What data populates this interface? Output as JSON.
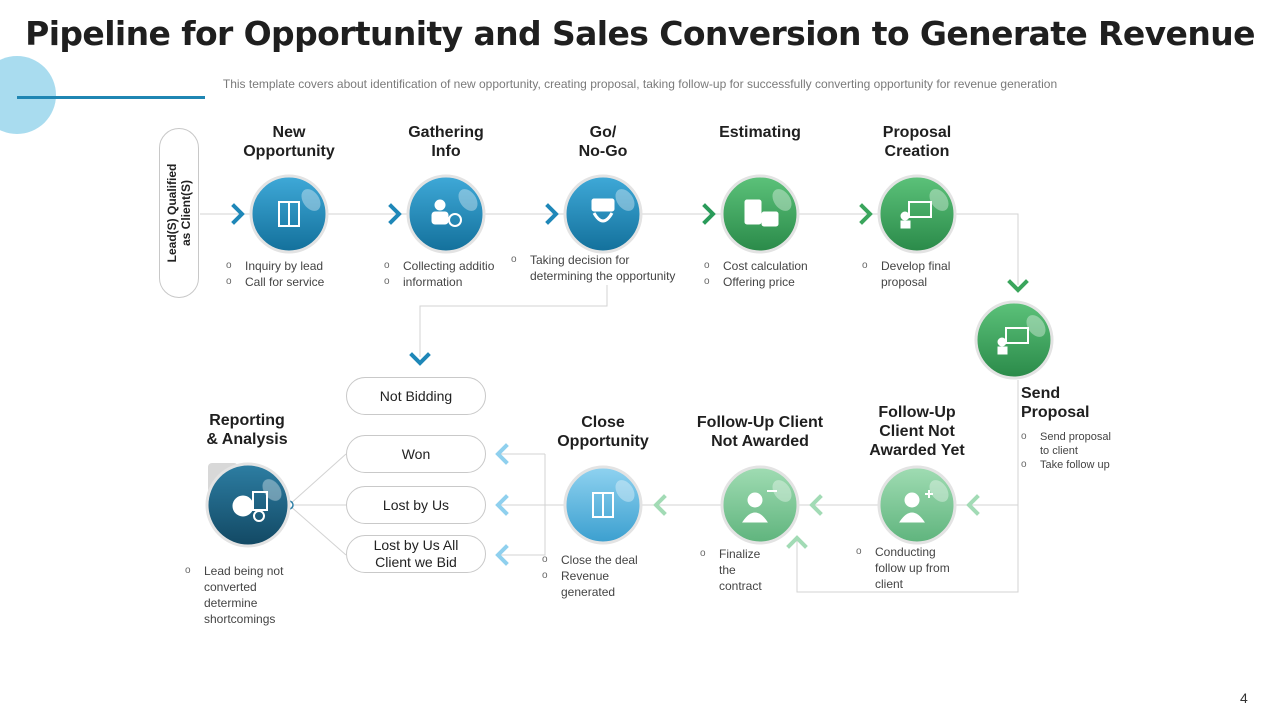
{
  "title": "Pipeline for Opportunity and Sales Conversion to Generate Revenue",
  "subtitle": "This template covers about identification of new opportunity, creating proposal, taking follow-up for successfully converting opportunity for revenue generation",
  "side_label": {
    "line1": "Lead(S) Qualified",
    "line2": "as Client(S)"
  },
  "top_stages": [
    {
      "title_l1": "New",
      "title_l2": "Opportunity",
      "bullets": [
        "Inquiry by lead",
        "Call for service"
      ],
      "icon": "door-icon"
    },
    {
      "title_l1": "Gathering",
      "title_l2": "Info",
      "bullets": [
        "Collecting additio",
        "information"
      ],
      "icon": "info-person-icon"
    },
    {
      "title_l1": "Go/",
      "title_l2": "No-Go",
      "bullets": [
        "Taking decision for",
        "determining the opportunity"
      ],
      "icon": "go-sign-icon"
    },
    {
      "title_l1": "Estimating",
      "title_l2": "",
      "bullets": [
        "Cost calculation",
        "Offering price"
      ],
      "icon": "calculator-icon"
    },
    {
      "title_l1": "Proposal",
      "title_l2": "Creation",
      "bullets": [
        "Develop final",
        "proposal"
      ],
      "icon": "presentation-icon"
    }
  ],
  "send_proposal": {
    "title_l1": "Send",
    "title_l2": "Proposal",
    "bullets": [
      "Send proposal",
      "to client",
      "Take follow up"
    ],
    "icon": "presentation-icon"
  },
  "follow_yet": {
    "title_l1": "Follow-Up",
    "title_l2": "Client Not",
    "title_l3": "Awarded Yet",
    "bullets": [
      "Conducting",
      "follow up from",
      "client"
    ],
    "icon": "user-plus-icon"
  },
  "follow_not": {
    "title_l1": "Follow-Up Client",
    "title_l2": "Not Awarded",
    "bullets": [
      "Finalize",
      "the",
      "contract"
    ],
    "icon": "user-minus-icon"
  },
  "close": {
    "title_l1": "Close",
    "title_l2": "Opportunity",
    "bullets": [
      "Close the deal",
      "Revenue",
      "generated"
    ],
    "icon": "closed-door-icon"
  },
  "reporting": {
    "title_l1": "Reporting",
    "title_l2": "& Analysis",
    "bullets": [
      "Lead being not",
      "converted",
      "determine",
      "shortcomings"
    ],
    "icon": "report-chart-icon"
  },
  "outcomes": {
    "not_bidding": "Not Bidding",
    "won": "Won",
    "lost": "Lost by Us",
    "lost_all_l1": "Lost by Us All",
    "lost_all_l2": "Client we Bid"
  },
  "page_number": "4",
  "colors": {
    "blue": "#1e87b8",
    "green": "#3aa55c",
    "light_green": "#7fcb97",
    "light_blue": "#5fb9e2",
    "dark_teal": "#1a5e7e",
    "connector": "#d0d0d0"
  }
}
